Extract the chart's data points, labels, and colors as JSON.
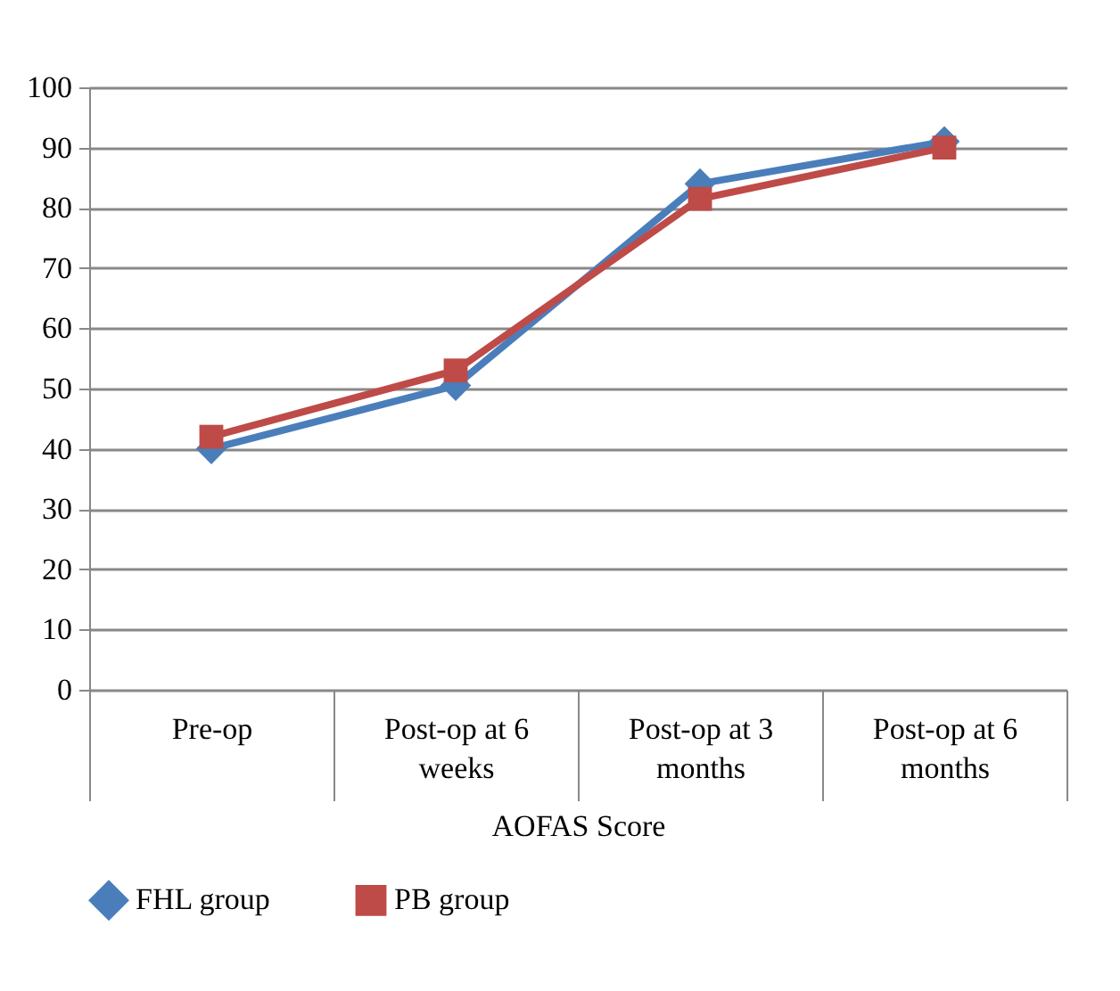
{
  "chart_data": {
    "type": "line",
    "xlabel": "AOFAS Score",
    "categories": [
      "Pre-op",
      "Post-op at 6 weeks",
      "Post-op at 3 months",
      "Post-op at 6 months"
    ],
    "series": [
      {
        "name": "FHL group",
        "color": "#4a7ebb",
        "marker": "diamond",
        "values": [
          40,
          50.5,
          84,
          91
        ]
      },
      {
        "name": "PB group",
        "color": "#be4b48",
        "marker": "square",
        "values": [
          42,
          53,
          81.5,
          90
        ]
      }
    ],
    "ylim": [
      0,
      100
    ],
    "yticks": [
      0,
      10,
      20,
      30,
      40,
      50,
      60,
      70,
      80,
      90,
      100
    ],
    "grid": "y",
    "legend": "bottom",
    "line_style": "solid"
  }
}
